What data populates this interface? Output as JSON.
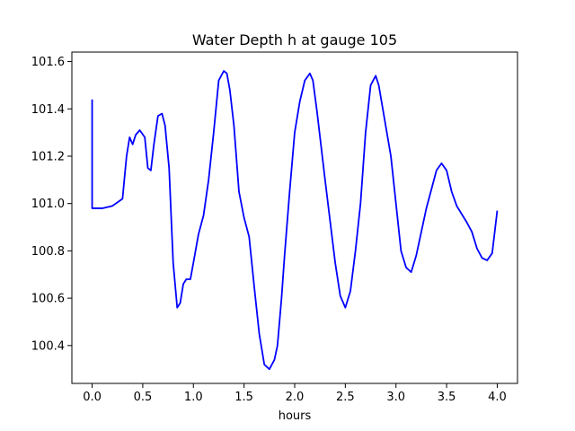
{
  "chart_data": {
    "type": "line",
    "title": "Water Depth h at gauge 105",
    "xlabel": "hours",
    "ylabel": "",
    "xlim": [
      -0.2,
      4.2
    ],
    "ylim": [
      100.24,
      101.64
    ],
    "grid": false,
    "x_ticks": [
      0.0,
      0.5,
      1.0,
      1.5,
      2.0,
      2.5,
      3.0,
      3.5,
      4.0
    ],
    "x_tick_labels": [
      "0.0",
      "0.5",
      "1.0",
      "1.5",
      "2.0",
      "2.5",
      "3.0",
      "3.5",
      "4.0"
    ],
    "y_ticks": [
      100.4,
      100.6,
      100.8,
      101.0,
      101.2,
      101.4,
      101.6
    ],
    "y_tick_labels": [
      "100.4",
      "100.6",
      "100.8",
      "101.0",
      "101.2",
      "101.4",
      "101.6"
    ],
    "series": [
      {
        "color": "#0000ff",
        "x": [
          0.0,
          0.0,
          0.01,
          0.1,
          0.2,
          0.3,
          0.34,
          0.37,
          0.4,
          0.43,
          0.47,
          0.52,
          0.55,
          0.58,
          0.61,
          0.65,
          0.69,
          0.72,
          0.76,
          0.8,
          0.84,
          0.87,
          0.9,
          0.93,
          0.97,
          1.0,
          1.05,
          1.1,
          1.15,
          1.2,
          1.25,
          1.3,
          1.33,
          1.36,
          1.4,
          1.45,
          1.5,
          1.55,
          1.6,
          1.65,
          1.7,
          1.75,
          1.8,
          1.83,
          1.87,
          1.9,
          1.95,
          2.0,
          2.05,
          2.1,
          2.15,
          2.18,
          2.22,
          2.3,
          2.4,
          2.45,
          2.5,
          2.55,
          2.6,
          2.65,
          2.7,
          2.75,
          2.8,
          2.83,
          2.87,
          2.95,
          3.05,
          3.1,
          3.15,
          3.2,
          3.3,
          3.4,
          3.45,
          3.5,
          3.55,
          3.6,
          3.7,
          3.75,
          3.8,
          3.85,
          3.9,
          3.95,
          4.0
        ],
        "values": [
          101.44,
          100.98,
          100.98,
          100.98,
          100.99,
          101.02,
          101.2,
          101.28,
          101.25,
          101.29,
          101.31,
          101.28,
          101.15,
          101.14,
          101.25,
          101.37,
          101.38,
          101.33,
          101.15,
          100.75,
          100.56,
          100.58,
          100.66,
          100.68,
          100.68,
          100.75,
          100.87,
          100.95,
          101.1,
          101.3,
          101.52,
          101.56,
          101.55,
          101.48,
          101.33,
          101.05,
          100.94,
          100.86,
          100.65,
          100.45,
          100.32,
          100.3,
          100.34,
          100.4,
          100.6,
          100.78,
          101.05,
          101.3,
          101.43,
          101.52,
          101.55,
          101.52,
          101.39,
          101.1,
          100.75,
          100.61,
          100.56,
          100.63,
          100.8,
          101.0,
          101.3,
          101.5,
          101.54,
          101.5,
          101.4,
          101.2,
          100.8,
          100.73,
          100.71,
          100.78,
          100.98,
          101.14,
          101.17,
          101.14,
          101.05,
          100.99,
          100.92,
          100.88,
          100.81,
          100.77,
          100.76,
          100.79,
          100.97
        ]
      }
    ]
  }
}
